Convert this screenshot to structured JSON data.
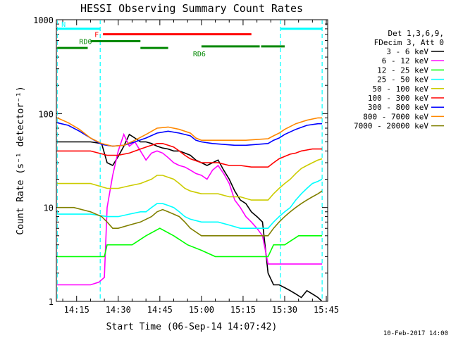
{
  "chart_data": {
    "type": "line",
    "title": "HESSI Observing Summary Count Rates",
    "xlabel": "Start Time (06-Sep-14 14:07:42)",
    "ylabel": "Count Rate (s⁻¹ detector⁻¹)",
    "y_log": true,
    "ylim": [
      1,
      1000
    ],
    "xlim": [
      7.7,
      105.5
    ],
    "x_units": "minutes after 14:00 UT",
    "x_tick_labels": [
      "14:15",
      "14:30",
      "14:45",
      "15:00",
      "15:15",
      "15:30",
      "15:45"
    ],
    "y_tick_labels": [
      "1",
      "10",
      "100",
      "1000"
    ],
    "legend_title": [
      "Det 1,3,6,9,",
      "FDecim 3, Att 0"
    ],
    "legend_position": "right, outside plot",
    "footer_date": "10-Feb-2017 14:00",
    "series": [
      {
        "name": "3 - 6 keV",
        "color": "#000000",
        "points": [
          [
            8,
            50
          ],
          [
            14,
            50
          ],
          [
            20,
            50
          ],
          [
            24,
            48
          ],
          [
            26,
            30
          ],
          [
            28,
            28
          ],
          [
            30,
            35
          ],
          [
            32,
            45
          ],
          [
            34,
            60
          ],
          [
            36,
            55
          ],
          [
            38,
            50
          ],
          [
            40,
            50
          ],
          [
            42,
            48
          ],
          [
            44,
            45
          ],
          [
            46,
            43
          ],
          [
            48,
            42
          ],
          [
            50,
            40
          ],
          [
            52,
            40
          ],
          [
            54,
            38
          ],
          [
            56,
            36
          ],
          [
            58,
            32
          ],
          [
            60,
            30
          ],
          [
            62,
            28
          ],
          [
            64,
            30
          ],
          [
            66,
            32
          ],
          [
            68,
            25
          ],
          [
            70,
            20
          ],
          [
            72,
            15
          ],
          [
            74,
            12
          ],
          [
            76,
            11
          ],
          [
            78,
            9
          ],
          [
            80,
            8
          ],
          [
            82,
            7
          ],
          [
            84,
            2
          ],
          [
            86,
            1.5
          ],
          [
            88,
            1.5
          ],
          [
            90,
            1.4
          ],
          [
            92,
            1.3
          ],
          [
            94,
            1.2
          ],
          [
            96,
            1.1
          ],
          [
            98,
            1.3
          ],
          [
            100,
            1.2
          ],
          [
            102,
            1.1
          ],
          [
            103.5,
            1.0
          ]
        ]
      },
      {
        "name": "6 - 12 keV",
        "color": "#ff00ff",
        "points": [
          [
            8,
            1.5
          ],
          [
            14,
            1.5
          ],
          [
            20,
            1.5
          ],
          [
            23,
            1.6
          ],
          [
            25,
            1.8
          ],
          [
            26,
            10
          ],
          [
            28,
            22
          ],
          [
            30,
            40
          ],
          [
            32,
            60
          ],
          [
            34,
            45
          ],
          [
            36,
            50
          ],
          [
            38,
            40
          ],
          [
            40,
            32
          ],
          [
            42,
            38
          ],
          [
            44,
            40
          ],
          [
            46,
            38
          ],
          [
            48,
            34
          ],
          [
            50,
            30
          ],
          [
            52,
            28
          ],
          [
            54,
            27
          ],
          [
            56,
            25
          ],
          [
            58,
            23
          ],
          [
            60,
            22
          ],
          [
            62,
            20
          ],
          [
            64,
            25
          ],
          [
            66,
            28
          ],
          [
            68,
            23
          ],
          [
            70,
            18
          ],
          [
            72,
            12
          ],
          [
            74,
            10
          ],
          [
            76,
            8
          ],
          [
            78,
            7
          ],
          [
            80,
            6
          ],
          [
            82,
            5
          ],
          [
            84,
            2.5
          ],
          [
            86,
            2.5
          ],
          [
            88,
            2.5
          ],
          [
            90,
            2.5
          ],
          [
            92,
            2.5
          ],
          [
            94,
            2.5
          ],
          [
            96,
            2.5
          ],
          [
            98,
            2.5
          ],
          [
            100,
            2.5
          ],
          [
            102,
            2.5
          ],
          [
            103.5,
            2.5
          ]
        ]
      },
      {
        "name": "12 - 25 keV",
        "color": "#00ff00",
        "points": [
          [
            8,
            3
          ],
          [
            14,
            3
          ],
          [
            20,
            3
          ],
          [
            25,
            3
          ],
          [
            26,
            4
          ],
          [
            30,
            4
          ],
          [
            35,
            4
          ],
          [
            40,
            5
          ],
          [
            45,
            6
          ],
          [
            50,
            5
          ],
          [
            55,
            4
          ],
          [
            60,
            3.5
          ],
          [
            65,
            3
          ],
          [
            70,
            3
          ],
          [
            75,
            3
          ],
          [
            80,
            3
          ],
          [
            84,
            3
          ],
          [
            86,
            4
          ],
          [
            90,
            4
          ],
          [
            95,
            5
          ],
          [
            100,
            5
          ],
          [
            103.5,
            5
          ]
        ]
      },
      {
        "name": "25 - 50 keV",
        "color": "#00ffff",
        "points": [
          [
            8,
            8.5
          ],
          [
            14,
            8.5
          ],
          [
            20,
            8.5
          ],
          [
            26,
            8
          ],
          [
            30,
            8
          ],
          [
            34,
            8.5
          ],
          [
            38,
            9
          ],
          [
            40,
            9
          ],
          [
            42,
            10
          ],
          [
            44,
            11
          ],
          [
            46,
            11
          ],
          [
            48,
            10.5
          ],
          [
            50,
            10
          ],
          [
            52,
            9
          ],
          [
            54,
            8
          ],
          [
            56,
            7.5
          ],
          [
            60,
            7
          ],
          [
            62,
            7
          ],
          [
            66,
            7
          ],
          [
            70,
            6.5
          ],
          [
            74,
            6
          ],
          [
            78,
            6
          ],
          [
            82,
            6
          ],
          [
            84,
            6
          ],
          [
            86,
            7
          ],
          [
            88,
            8
          ],
          [
            90,
            9
          ],
          [
            92,
            10
          ],
          [
            94,
            12
          ],
          [
            96,
            14
          ],
          [
            98,
            16
          ],
          [
            100,
            18
          ],
          [
            102,
            19
          ],
          [
            103.5,
            20
          ]
        ]
      },
      {
        "name": "50 - 100 keV",
        "color": "#cccc00",
        "points": [
          [
            8,
            18
          ],
          [
            14,
            18
          ],
          [
            20,
            18
          ],
          [
            26,
            16
          ],
          [
            30,
            16
          ],
          [
            34,
            17
          ],
          [
            38,
            18
          ],
          [
            40,
            19
          ],
          [
            42,
            20
          ],
          [
            44,
            22
          ],
          [
            46,
            22
          ],
          [
            48,
            21
          ],
          [
            50,
            20
          ],
          [
            52,
            18
          ],
          [
            54,
            16
          ],
          [
            56,
            15
          ],
          [
            60,
            14
          ],
          [
            62,
            14
          ],
          [
            66,
            14
          ],
          [
            70,
            13
          ],
          [
            74,
            13
          ],
          [
            78,
            12
          ],
          [
            82,
            12
          ],
          [
            84,
            12
          ],
          [
            86,
            14
          ],
          [
            88,
            16
          ],
          [
            90,
            18
          ],
          [
            92,
            20
          ],
          [
            94,
            23
          ],
          [
            96,
            26
          ],
          [
            98,
            28
          ],
          [
            100,
            30
          ],
          [
            102,
            32
          ],
          [
            103.5,
            33
          ]
        ]
      },
      {
        "name": "100 - 300 keV",
        "color": "#ff0000",
        "points": [
          [
            8,
            40
          ],
          [
            14,
            40
          ],
          [
            20,
            40
          ],
          [
            26,
            36
          ],
          [
            30,
            36
          ],
          [
            34,
            38
          ],
          [
            38,
            42
          ],
          [
            40,
            44
          ],
          [
            42,
            46
          ],
          [
            44,
            48
          ],
          [
            46,
            48
          ],
          [
            48,
            46
          ],
          [
            50,
            44
          ],
          [
            52,
            40
          ],
          [
            54,
            36
          ],
          [
            56,
            33
          ],
          [
            60,
            30
          ],
          [
            62,
            30
          ],
          [
            66,
            30
          ],
          [
            70,
            28
          ],
          [
            74,
            28
          ],
          [
            78,
            27
          ],
          [
            82,
            27
          ],
          [
            84,
            27
          ],
          [
            86,
            30
          ],
          [
            88,
            33
          ],
          [
            90,
            35
          ],
          [
            92,
            37
          ],
          [
            94,
            38
          ],
          [
            96,
            40
          ],
          [
            98,
            41
          ],
          [
            100,
            42
          ],
          [
            102,
            42
          ],
          [
            103.5,
            42
          ]
        ]
      },
      {
        "name": "300 - 800 keV",
        "color": "#0000ff",
        "points": [
          [
            8,
            80
          ],
          [
            12,
            75
          ],
          [
            16,
            65
          ],
          [
            20,
            55
          ],
          [
            24,
            47
          ],
          [
            28,
            45
          ],
          [
            32,
            46
          ],
          [
            36,
            50
          ],
          [
            40,
            55
          ],
          [
            44,
            62
          ],
          [
            48,
            65
          ],
          [
            52,
            62
          ],
          [
            56,
            58
          ],
          [
            58,
            52
          ],
          [
            60,
            50
          ],
          [
            64,
            48
          ],
          [
            68,
            47
          ],
          [
            72,
            46
          ],
          [
            76,
            46
          ],
          [
            80,
            47
          ],
          [
            84,
            48
          ],
          [
            86,
            52
          ],
          [
            88,
            55
          ],
          [
            90,
            60
          ],
          [
            94,
            68
          ],
          [
            98,
            75
          ],
          [
            102,
            78
          ],
          [
            103.5,
            78
          ]
        ]
      },
      {
        "name": "800 - 7000 keV",
        "color": "#ff8800",
        "points": [
          [
            8,
            90
          ],
          [
            12,
            80
          ],
          [
            16,
            68
          ],
          [
            20,
            55
          ],
          [
            24,
            48
          ],
          [
            28,
            45
          ],
          [
            32,
            46
          ],
          [
            36,
            52
          ],
          [
            40,
            60
          ],
          [
            44,
            70
          ],
          [
            48,
            72
          ],
          [
            52,
            68
          ],
          [
            56,
            62
          ],
          [
            58,
            55
          ],
          [
            60,
            52
          ],
          [
            64,
            52
          ],
          [
            68,
            52
          ],
          [
            72,
            52
          ],
          [
            76,
            52
          ],
          [
            80,
            53
          ],
          [
            84,
            54
          ],
          [
            86,
            58
          ],
          [
            88,
            62
          ],
          [
            90,
            68
          ],
          [
            94,
            78
          ],
          [
            98,
            85
          ],
          [
            102,
            90
          ],
          [
            103.5,
            90
          ]
        ]
      },
      {
        "name": "7000 - 20000 keV",
        "color": "#808000",
        "points": [
          [
            8,
            10
          ],
          [
            14,
            10
          ],
          [
            20,
            9
          ],
          [
            24,
            8
          ],
          [
            26,
            7
          ],
          [
            28,
            6
          ],
          [
            30,
            6
          ],
          [
            34,
            6.5
          ],
          [
            38,
            7
          ],
          [
            42,
            8
          ],
          [
            44,
            9
          ],
          [
            46,
            9.5
          ],
          [
            48,
            9
          ],
          [
            50,
            8.5
          ],
          [
            52,
            8
          ],
          [
            54,
            7
          ],
          [
            56,
            6
          ],
          [
            60,
            5
          ],
          [
            64,
            5
          ],
          [
            68,
            5
          ],
          [
            72,
            5
          ],
          [
            76,
            5
          ],
          [
            80,
            5
          ],
          [
            84,
            5
          ],
          [
            86,
            6
          ],
          [
            88,
            7
          ],
          [
            90,
            8
          ],
          [
            92,
            9
          ],
          [
            94,
            10
          ],
          [
            96,
            11
          ],
          [
            98,
            12
          ],
          [
            100,
            13
          ],
          [
            102,
            14
          ],
          [
            103.5,
            15
          ]
        ]
      }
    ],
    "events": [
      {
        "name": "N",
        "color": "#00ffff",
        "y": 800,
        "segments": [
          [
            8,
            23.5
          ],
          [
            88.5,
            103.5
          ]
        ]
      },
      {
        "name": "F",
        "color": "#ff0000",
        "y": 700,
        "segments": [
          [
            24.5,
            78
          ]
        ]
      },
      {
        "name": "RD0",
        "color": "#008800",
        "y": 590,
        "segments": [
          [
            20,
            38
          ]
        ]
      },
      {
        "name": "",
        "color": "#008800",
        "y": 500,
        "segments": [
          [
            8,
            19
          ],
          [
            38,
            48
          ]
        ]
      },
      {
        "name": "RD6",
        "color": "#008800",
        "y": 520,
        "segments": [
          [
            60,
            81
          ],
          [
            81.5,
            90
          ]
        ]
      }
    ],
    "event_vlines": [
      {
        "x": 8,
        "color": "#00ffff"
      },
      {
        "x": 23.5,
        "color": "#00ffff"
      },
      {
        "x": 88.5,
        "color": "#00ffff"
      },
      {
        "x": 103.5,
        "color": "#00ffff"
      }
    ]
  }
}
